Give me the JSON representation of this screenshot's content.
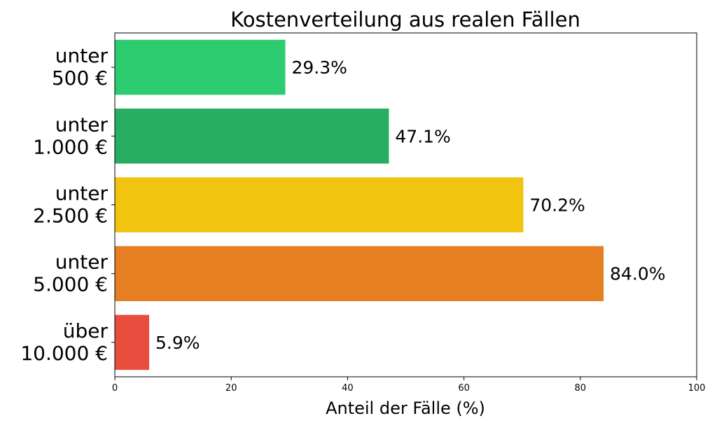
{
  "chart_data": {
    "type": "bar",
    "orientation": "horizontal",
    "title": "Kostenverteilung aus realen Fällen",
    "xlabel": "Anteil der Fälle (%)",
    "ylabel": "",
    "xlim": [
      0,
      100
    ],
    "xticks": [
      "0",
      "20",
      "40",
      "60",
      "80",
      "100"
    ],
    "grid": false,
    "categories": [
      [
        "unter",
        "500 €"
      ],
      [
        "unter",
        "1.000 €"
      ],
      [
        "unter",
        "2.500 €"
      ],
      [
        "unter",
        "5.000 €"
      ],
      [
        "über",
        "10.000 €"
      ]
    ],
    "values": [
      29.3,
      47.1,
      70.2,
      84.0,
      5.9
    ],
    "value_labels": [
      "29.3%",
      "47.1%",
      "70.2%",
      "84.0%",
      "5.9%"
    ],
    "colors": [
      "#2ecc71",
      "#27ae60",
      "#f1c40f",
      "#e67e22",
      "#e74c3c"
    ]
  }
}
